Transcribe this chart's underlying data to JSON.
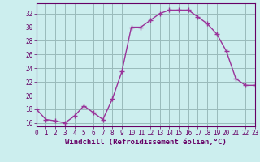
{
  "x": [
    0,
    1,
    2,
    3,
    4,
    5,
    6,
    7,
    8,
    9,
    10,
    11,
    12,
    13,
    14,
    15,
    16,
    17,
    18,
    19,
    20,
    21,
    22,
    23
  ],
  "y": [
    18,
    16.5,
    16.3,
    16.0,
    17.0,
    18.5,
    17.5,
    16.5,
    19.5,
    23.5,
    30.0,
    30.0,
    31.0,
    32.0,
    32.5,
    32.5,
    32.5,
    31.5,
    30.5,
    29.0,
    26.5,
    22.5,
    21.5,
    21.5
  ],
  "line_color": "#993399",
  "marker_color": "#993399",
  "bg_color": "#cceeee",
  "grid_color": "#99bbbb",
  "axis_color": "#660066",
  "tick_color": "#660066",
  "xlabel": "Windchill (Refroidissement éolien,°C)",
  "xlim": [
    0,
    23
  ],
  "ylim": [
    15.5,
    33.5
  ],
  "yticks": [
    16,
    18,
    20,
    22,
    24,
    26,
    28,
    30,
    32
  ],
  "xticks": [
    0,
    1,
    2,
    3,
    4,
    5,
    6,
    7,
    8,
    9,
    10,
    11,
    12,
    13,
    14,
    15,
    16,
    17,
    18,
    19,
    20,
    21,
    22,
    23
  ],
  "xlabel_fontsize": 6.5,
  "tick_fontsize": 5.5,
  "linewidth": 1.0,
  "markersize": 2.0
}
